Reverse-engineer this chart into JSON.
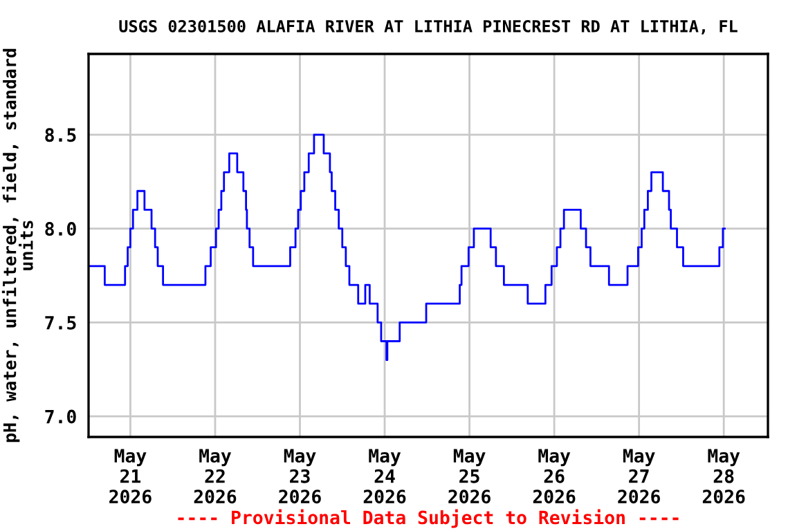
{
  "chart_data": {
    "type": "step",
    "title": "USGS 02301500 ALAFIA RIVER AT LITHIA PINECREST RD AT LITHIA, FL",
    "ylabel": "pH, water, unfiltered, field, standard\nunits",
    "annotations": [
      "---- Provisional Data Subject to Revision ----"
    ],
    "x": [
      "2026-05-20T12:15",
      "2026-05-20T16:45",
      "2026-05-20T22:30",
      "2026-05-20T23:15",
      "2026-05-21T00:00",
      "2026-05-21T00:45",
      "2026-05-21T02:00",
      "2026-05-21T04:00",
      "2026-05-21T06:00",
      "2026-05-21T07:00",
      "2026-05-21T07:45",
      "2026-05-21T09:15",
      "2026-05-21T21:15",
      "2026-05-21T22:45",
      "2026-05-22T00:15",
      "2026-05-22T01:00",
      "2026-05-22T01:45",
      "2026-05-22T02:30",
      "2026-05-22T04:00",
      "2026-05-22T06:15",
      "2026-05-22T08:00",
      "2026-05-22T08:45",
      "2026-05-22T09:00",
      "2026-05-22T09:45",
      "2026-05-22T10:45",
      "2026-05-22T21:15",
      "2026-05-22T22:45",
      "2026-05-22T23:30",
      "2026-05-23T00:15",
      "2026-05-23T01:15",
      "2026-05-23T02:30",
      "2026-05-23T04:00",
      "2026-05-23T06:45",
      "2026-05-23T08:30",
      "2026-05-23T09:00",
      "2026-05-23T10:00",
      "2026-05-23T11:00",
      "2026-05-23T12:00",
      "2026-05-23T13:00",
      "2026-05-23T14:00",
      "2026-05-23T16:30",
      "2026-05-23T18:30",
      "2026-05-23T19:45",
      "2026-05-23T22:00",
      "2026-05-23T23:00",
      "2026-05-24T00:30",
      "2026-05-24T00:45",
      "2026-05-24T01:15",
      "2026-05-24T04:15",
      "2026-05-24T11:45",
      "2026-05-24T21:15",
      "2026-05-24T21:45",
      "2026-05-24T23:45",
      "2026-05-25T01:15",
      "2026-05-25T06:00",
      "2026-05-25T07:30",
      "2026-05-25T09:45",
      "2026-05-25T16:30",
      "2026-05-25T21:30",
      "2026-05-25T23:15",
      "2026-05-26T00:45",
      "2026-05-26T01:45",
      "2026-05-26T02:45",
      "2026-05-26T07:30",
      "2026-05-26T09:00",
      "2026-05-26T10:15",
      "2026-05-26T15:30",
      "2026-05-26T20:45",
      "2026-05-26T23:45",
      "2026-05-27T00:45",
      "2026-05-27T01:30",
      "2026-05-27T02:30",
      "2026-05-27T03:30",
      "2026-05-27T06:45",
      "2026-05-27T08:30",
      "2026-05-27T09:00",
      "2026-05-27T10:45",
      "2026-05-27T12:30",
      "2026-05-27T22:45",
      "2026-05-27T23:45",
      "2026-05-28T00:15"
    ],
    "series": [
      {
        "color": "#0000ff",
        "values": [
          7.8,
          7.7,
          7.8,
          7.9,
          8.0,
          8.1,
          8.2,
          8.1,
          8.0,
          7.9,
          7.8,
          7.7,
          7.8,
          7.9,
          8.0,
          8.1,
          8.2,
          8.3,
          8.4,
          8.3,
          8.2,
          8.1,
          8.0,
          7.9,
          7.8,
          7.9,
          8.0,
          8.1,
          8.2,
          8.3,
          8.4,
          8.5,
          8.4,
          8.3,
          8.2,
          8.1,
          8.0,
          7.9,
          7.8,
          7.7,
          7.6,
          7.7,
          7.6,
          7.5,
          7.4,
          7.3,
          7.4,
          7.4,
          7.5,
          7.6,
          7.7,
          7.8,
          7.9,
          8.0,
          7.9,
          7.8,
          7.7,
          7.6,
          7.7,
          7.8,
          7.9,
          8.0,
          8.1,
          8.0,
          7.9,
          7.8,
          7.7,
          7.8,
          7.9,
          8.0,
          8.1,
          8.2,
          8.3,
          8.2,
          8.1,
          8.0,
          7.9,
          7.8,
          7.9,
          8.0,
          8.0
        ]
      }
    ],
    "xlim": [
      "2026-05-20T12:10",
      "2026-05-28T12:30"
    ],
    "xticks": [
      {
        "value": "2026-05-21",
        "label": "May\n21\n2026"
      },
      {
        "value": "2026-05-22",
        "label": "May\n22\n2026"
      },
      {
        "value": "2026-05-23",
        "label": "May\n23\n2026"
      },
      {
        "value": "2026-05-24",
        "label": "May\n24\n2026"
      },
      {
        "value": "2026-05-25",
        "label": "May\n25\n2026"
      },
      {
        "value": "2026-05-26",
        "label": "May\n26\n2026"
      },
      {
        "value": "2026-05-27",
        "label": "May\n27\n2026"
      },
      {
        "value": "2026-05-28",
        "label": "May\n28\n2026"
      }
    ],
    "ylim": [
      6.89,
      8.93
    ],
    "yticks": [
      {
        "value": 7.0,
        "label": "7.0"
      },
      {
        "value": 7.5,
        "label": "7.5"
      },
      {
        "value": 8.0,
        "label": "8.0"
      },
      {
        "value": 8.5,
        "label": "8.5"
      }
    ],
    "grid": true,
    "legend": false,
    "marker": "none",
    "line_style": "solid"
  }
}
